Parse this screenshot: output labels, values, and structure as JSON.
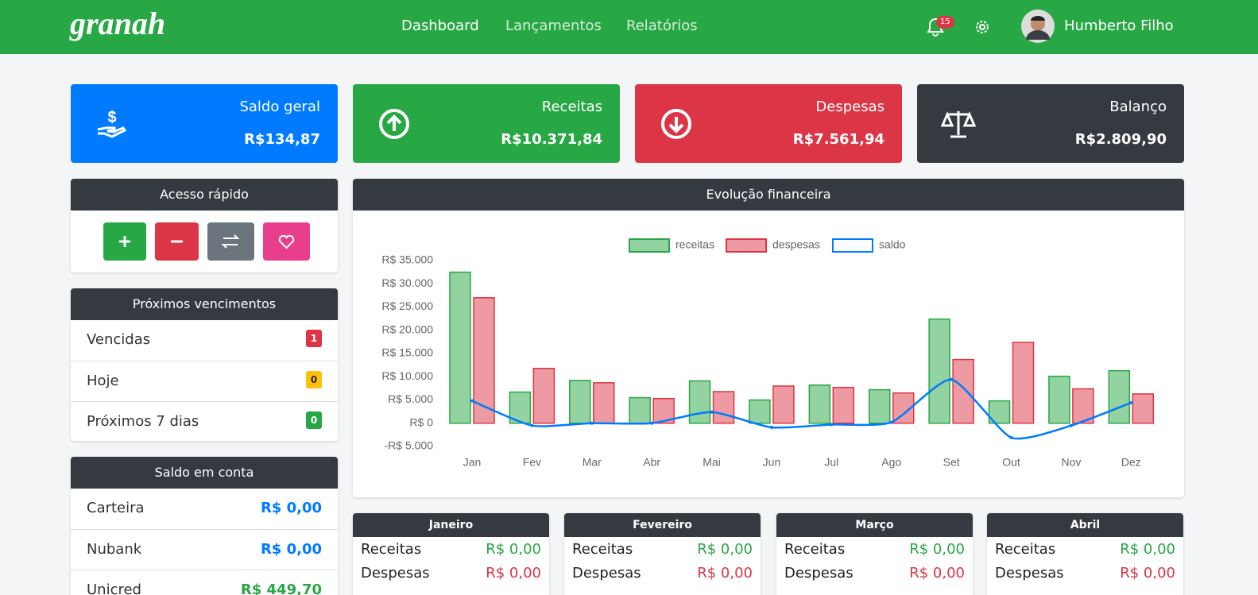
{
  "header": {
    "brand": "granah",
    "nav": [
      "Dashboard",
      "Lançamentos",
      "Relatórios"
    ],
    "notifications": "15",
    "user": "Humberto Filho"
  },
  "cards": [
    {
      "title": "Saldo geral",
      "value": "R$134,87"
    },
    {
      "title": "Receitas",
      "value": "R$10.371,84"
    },
    {
      "title": "Despesas",
      "value": "R$7.561,94"
    },
    {
      "title": "Balanço",
      "value": "R$2.809,90"
    }
  ],
  "quick_access": {
    "title": "Acesso rápido"
  },
  "due": {
    "title": "Próximos vencimentos",
    "items": [
      {
        "label": "Vencidas",
        "count": 1
      },
      {
        "label": "Hoje",
        "count": 0
      },
      {
        "label": "Próximos 7 dias",
        "count": 0
      }
    ]
  },
  "accounts": {
    "title": "Saldo em conta",
    "rows": [
      {
        "label": "Carteira",
        "value": "R$ 0,00"
      },
      {
        "label": "Nubank",
        "value": "R$ 0,00"
      },
      {
        "label": "Unicred",
        "value": "R$ 449,70"
      }
    ]
  },
  "chart_data": {
    "type": "bar",
    "title": "Evolução financeira",
    "categories": [
      "Jan",
      "Fev",
      "Mar",
      "Abr",
      "Mai",
      "Jun",
      "Jul",
      "Ago",
      "Set",
      "Out",
      "Nov",
      "Dez"
    ],
    "series": [
      {
        "name": "receitas",
        "color": "#28a745",
        "values": [
          32500,
          6700,
          9200,
          5500,
          9100,
          5000,
          8200,
          7200,
          22400,
          4800,
          10100,
          11300
        ]
      },
      {
        "name": "despesas",
        "color": "#dc3545",
        "values": [
          27000,
          11800,
          8700,
          5300,
          6800,
          8000,
          7700,
          6500,
          13700,
          17400,
          7400,
          6300
        ]
      },
      {
        "name": "saldo",
        "color": "#007bff",
        "type": "line",
        "values": [
          4800,
          -500,
          0,
          0,
          2400,
          -900,
          -300,
          200,
          9400,
          -3100,
          -500,
          4400
        ]
      }
    ],
    "ylim": [
      -5000,
      35000
    ],
    "yticks": [
      {
        "value": -5000,
        "label": "-R$ 5.000"
      },
      {
        "value": 0,
        "label": "R$ 0"
      },
      {
        "value": 5000,
        "label": "R$ 5.000"
      },
      {
        "value": 10000,
        "label": "R$ 10.000"
      },
      {
        "value": 15000,
        "label": "R$ 15.000"
      },
      {
        "value": 20000,
        "label": "R$ 20.000"
      },
      {
        "value": 25000,
        "label": "R$ 25.000"
      },
      {
        "value": 30000,
        "label": "R$ 30.000"
      },
      {
        "value": 35000,
        "label": "R$ 35.000"
      }
    ],
    "grid": false,
    "legend": "top"
  },
  "months": [
    {
      "title": "Janeiro",
      "rows": [
        {
          "label": "Receitas",
          "value": "R$ 0,00"
        },
        {
          "label": "Despesas",
          "value": "R$ 0,00"
        }
      ]
    },
    {
      "title": "Fevereiro",
      "rows": [
        {
          "label": "Receitas",
          "value": "R$ 0,00"
        },
        {
          "label": "Despesas",
          "value": "R$ 0,00"
        }
      ]
    },
    {
      "title": "Março",
      "rows": [
        {
          "label": "Receitas",
          "value": "R$ 0,00"
        },
        {
          "label": "Despesas",
          "value": "R$ 0,00"
        }
      ]
    },
    {
      "title": "Abril",
      "rows": [
        {
          "label": "Receitas",
          "value": "R$ 0,00"
        },
        {
          "label": "Despesas",
          "value": "R$ 0,00"
        }
      ]
    }
  ]
}
